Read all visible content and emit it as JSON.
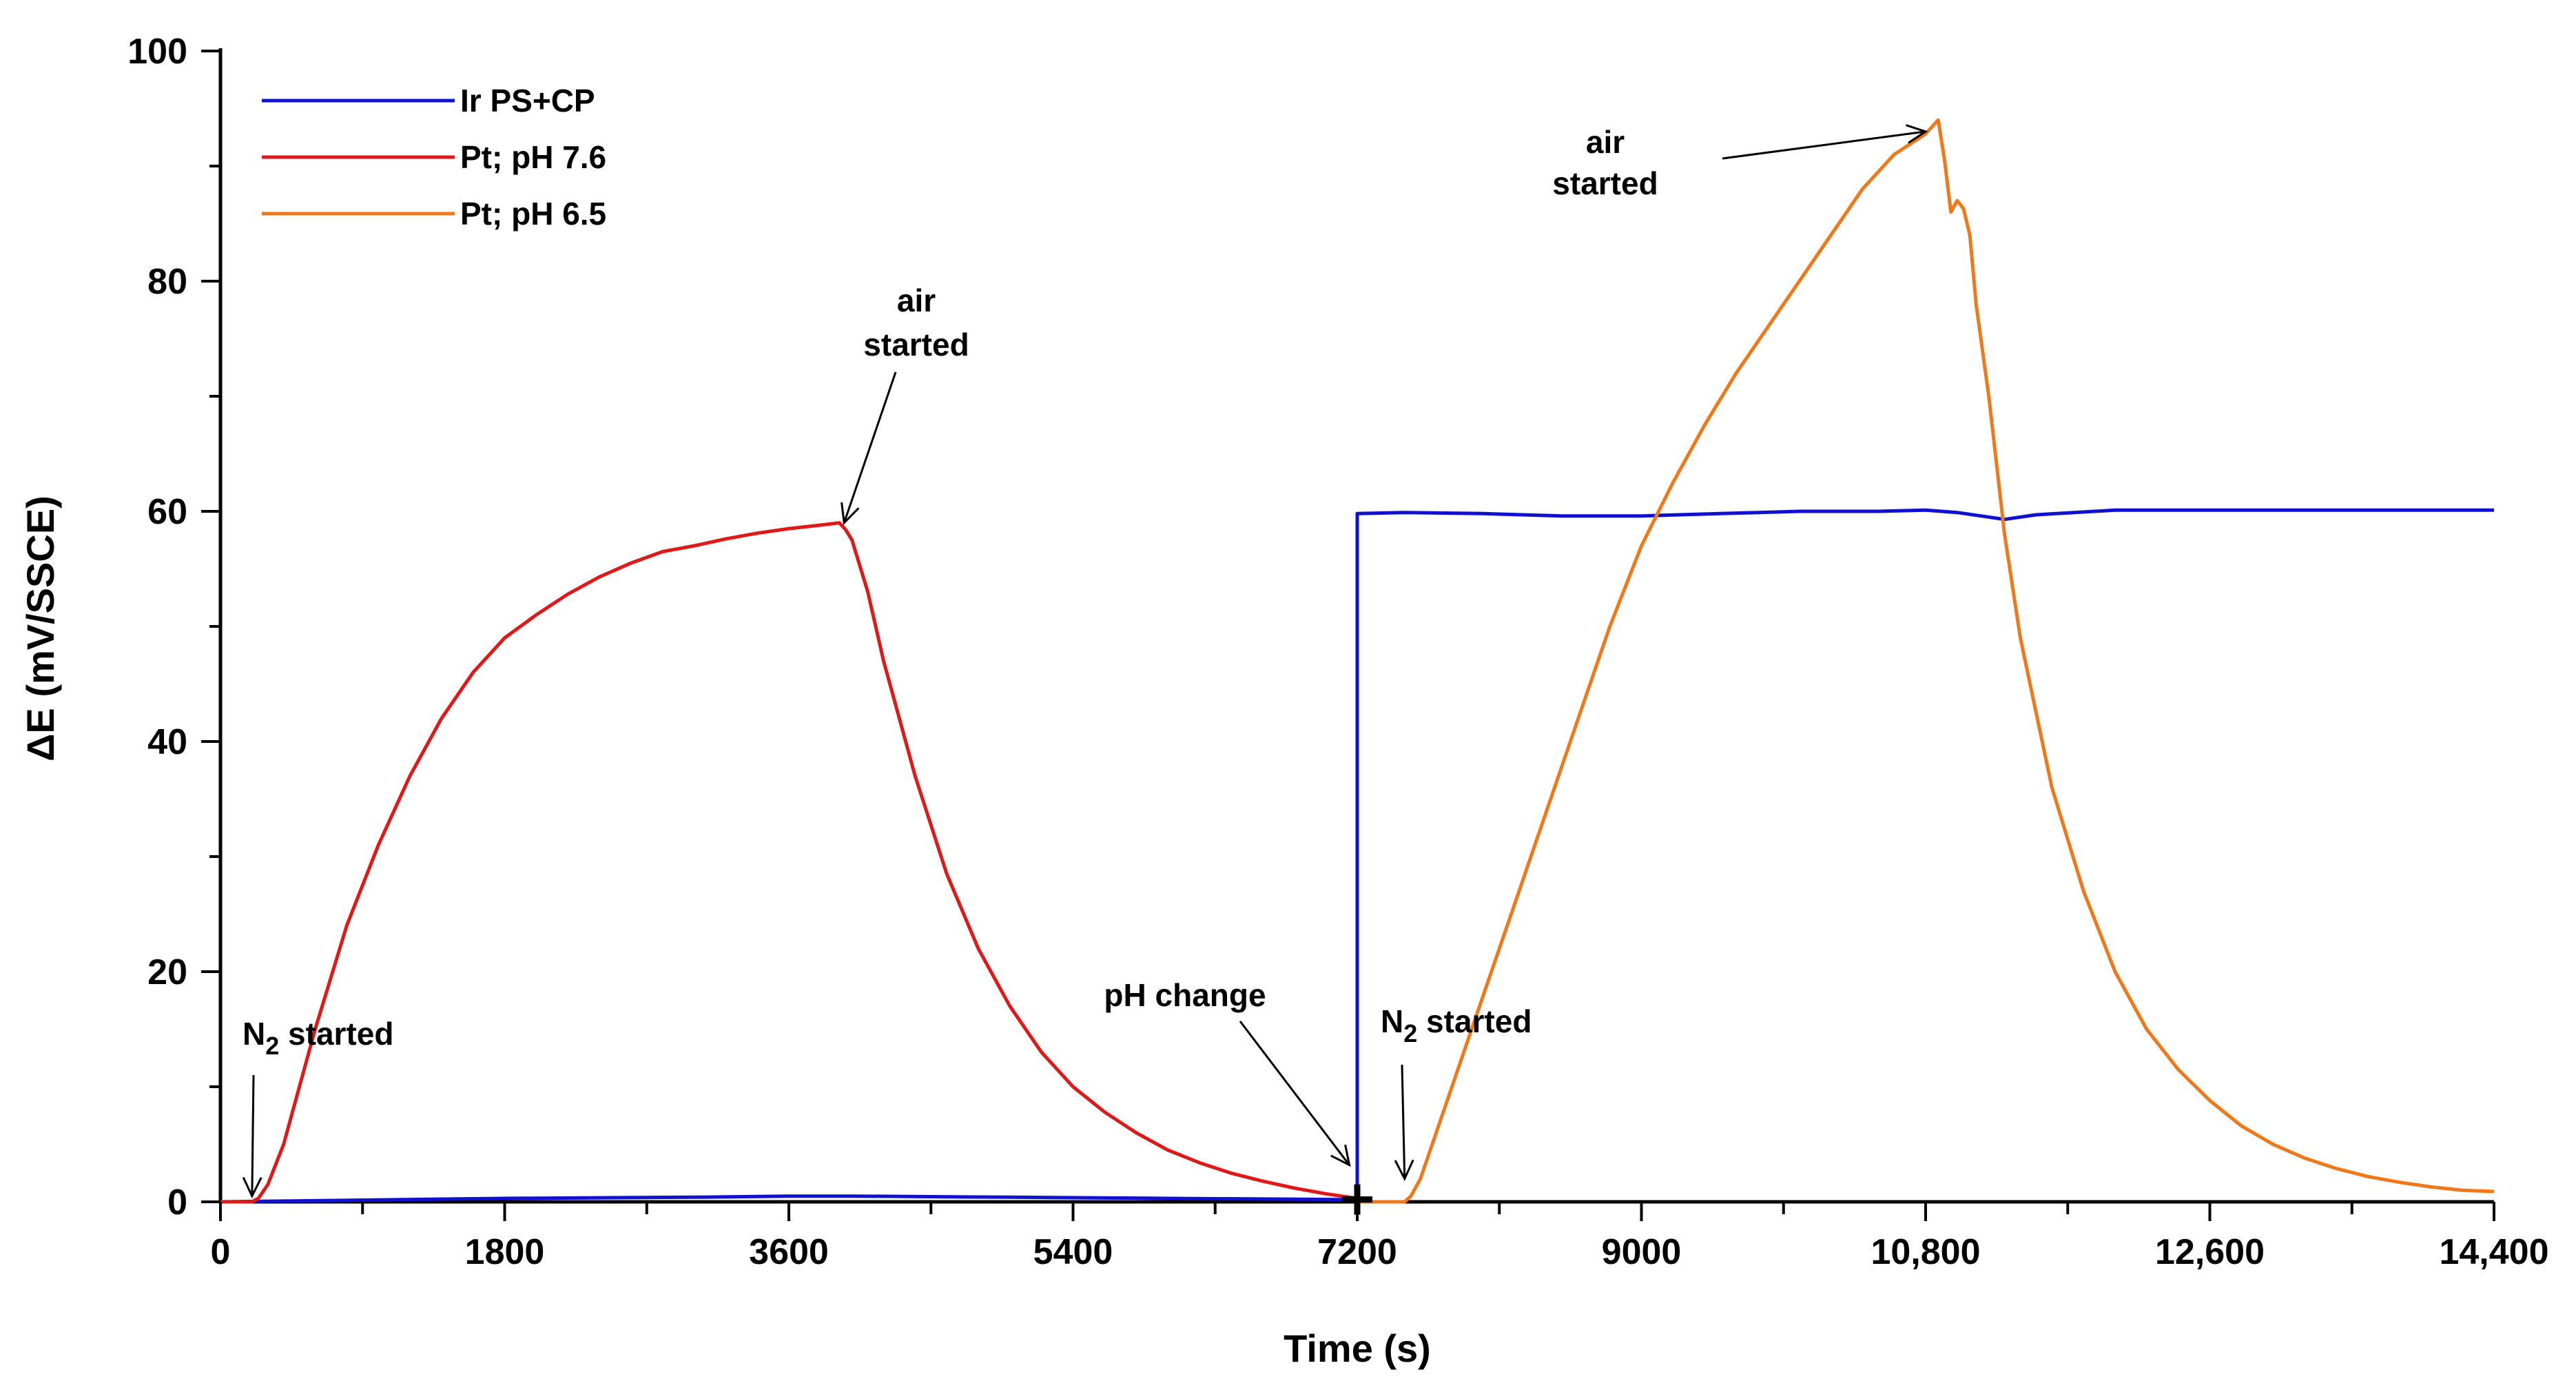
{
  "chart_data": {
    "type": "line",
    "title": "",
    "xlabel": "Time (s)",
    "ylabel": "ΔE (mV/SSCE)",
    "xlim": [
      0,
      14400
    ],
    "ylim": [
      0,
      100
    ],
    "xticks": [
      0,
      1800,
      3600,
      5400,
      7200,
      9000,
      10800,
      12600,
      14400
    ],
    "xtick_labels": [
      "0",
      "1800",
      "3600",
      "5400",
      "7200",
      "9000",
      "10,800",
      "12,600",
      "14,400"
    ],
    "yticks": [
      0,
      20,
      40,
      60,
      80,
      100
    ],
    "ytick_labels": [
      "0",
      "20",
      "40",
      "60",
      "80",
      "100"
    ],
    "legend_position": "top-left",
    "colors": {
      "blue": "#1010d0",
      "red": "#e01818",
      "orange": "#f07818"
    },
    "series": [
      {
        "name": "Ir PS+CP",
        "color": "#1010d0",
        "x": [
          0,
          1800,
          3000,
          3600,
          4000,
          5000,
          6000,
          7100,
          7200,
          7200,
          7500,
          8000,
          8500,
          9000,
          9500,
          10000,
          10500,
          10800,
          11000,
          11300,
          11500,
          12000,
          13000,
          14400
        ],
        "y": [
          0.0,
          0.3,
          0.4,
          0.5,
          0.5,
          0.4,
          0.3,
          0.2,
          0.2,
          59.8,
          59.9,
          59.8,
          59.6,
          59.6,
          59.8,
          60.0,
          60.0,
          60.1,
          59.9,
          59.3,
          59.7,
          60.1,
          60.1,
          60.1
        ]
      },
      {
        "name": "Pt; pH 7.6",
        "color": "#e01818",
        "x": [
          0,
          200,
          240,
          300,
          400,
          600,
          800,
          1000,
          1200,
          1400,
          1600,
          1800,
          2000,
          2200,
          2400,
          2600,
          2800,
          3000,
          3200,
          3400,
          3600,
          3800,
          3920,
          3960,
          4000,
          4100,
          4200,
          4400,
          4600,
          4800,
          5000,
          5200,
          5400,
          5600,
          5800,
          6000,
          6200,
          6400,
          6600,
          6800,
          7000,
          7200
        ],
        "y": [
          0.0,
          0.0,
          0.3,
          1.5,
          5.0,
          15.0,
          24.0,
          31.0,
          37.0,
          42.0,
          46.0,
          49.0,
          51.0,
          52.8,
          54.3,
          55.5,
          56.5,
          57.0,
          57.6,
          58.1,
          58.5,
          58.8,
          59.0,
          58.4,
          57.5,
          53.0,
          47.0,
          37.0,
          28.5,
          22.0,
          17.0,
          13.0,
          10.0,
          7.8,
          6.0,
          4.5,
          3.4,
          2.5,
          1.8,
          1.2,
          0.7,
          0.3
        ]
      },
      {
        "name": "Pt; pH 6.5",
        "color": "#f07818",
        "x": [
          7200,
          7500,
          7540,
          7600,
          7800,
          8000,
          8200,
          8400,
          8600,
          8800,
          9000,
          9200,
          9400,
          9600,
          9800,
          10000,
          10200,
          10400,
          10600,
          10800,
          10880,
          10920,
          10960,
          11000,
          11040,
          11080,
          11120,
          11200,
          11300,
          11400,
          11600,
          11800,
          12000,
          12200,
          12400,
          12600,
          12800,
          13000,
          13200,
          13400,
          13600,
          13800,
          14000,
          14200,
          14400
        ],
        "y": [
          0.0,
          0.0,
          0.5,
          2.0,
          10.0,
          18.0,
          26.0,
          34.0,
          42.0,
          50.0,
          57.0,
          62.5,
          67.5,
          72.0,
          76.0,
          80.0,
          84.0,
          88.0,
          91.0,
          92.8,
          94.0,
          90.5,
          86.0,
          87.0,
          86.3,
          84.0,
          78.0,
          70.0,
          58.0,
          49.0,
          36.0,
          27.0,
          20.0,
          15.0,
          11.5,
          8.8,
          6.6,
          5.0,
          3.8,
          2.9,
          2.2,
          1.7,
          1.3,
          1.0,
          0.9
        ]
      }
    ],
    "annotations": [
      {
        "id": "n2-1",
        "main": "N",
        "sub": "2",
        "rest": " started",
        "arrow_to": [
          200,
          0.5
        ]
      },
      {
        "id": "air-1",
        "line1": "air",
        "line2": "started",
        "arrow_to": [
          3950,
          59.0
        ]
      },
      {
        "id": "ph",
        "text": "pH change",
        "arrow_to": [
          7150,
          3.2
        ]
      },
      {
        "id": "n2-2",
        "main": "N",
        "sub": "2",
        "rest": " started",
        "arrow_to": [
          7500,
          2.0
        ]
      },
      {
        "id": "air-2",
        "line1": "air",
        "line2": "started",
        "arrow_to": [
          10800,
          93.0
        ]
      }
    ]
  }
}
